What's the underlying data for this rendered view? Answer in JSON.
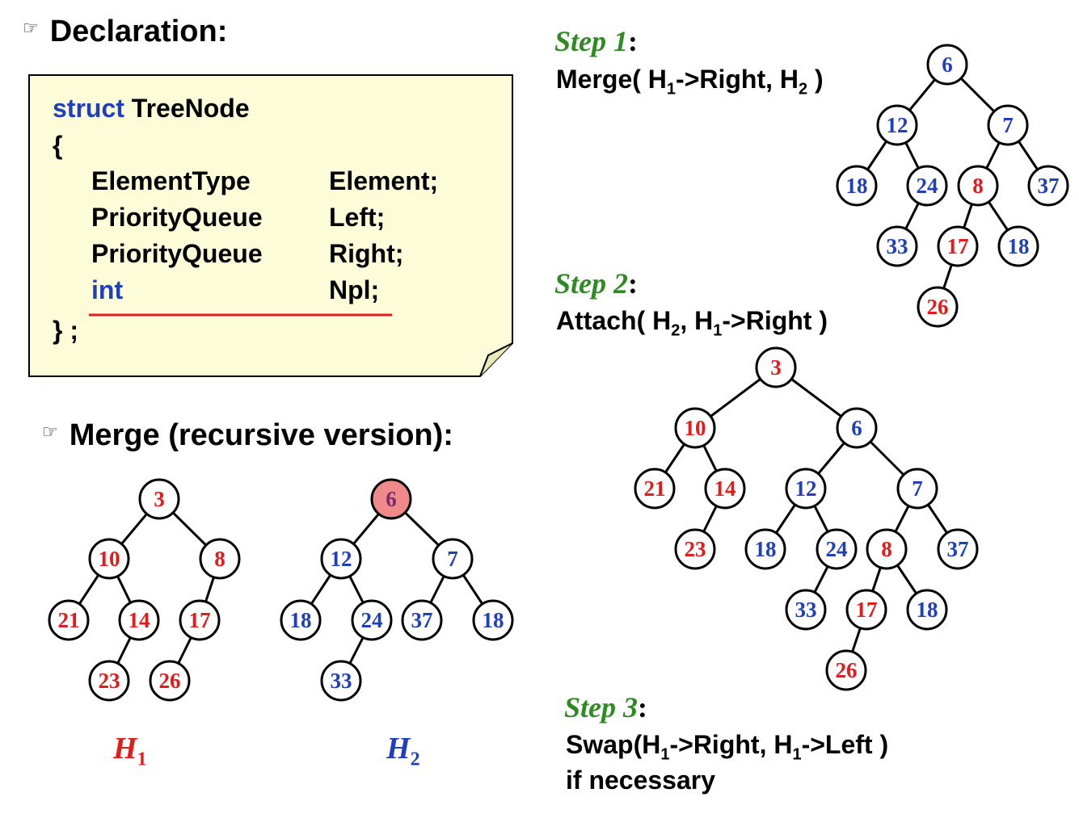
{
  "declaration_heading": "Declaration:",
  "code": {
    "line1_kw": "struct",
    "line1_name": "TreeNode",
    "open_brace": "{",
    "fields": [
      {
        "type": "ElementType",
        "name": "Element;",
        "keyword": false
      },
      {
        "type": "PriorityQueue",
        "name": "Left;",
        "keyword": false
      },
      {
        "type": "PriorityQueue",
        "name": "Right;",
        "keyword": false
      },
      {
        "type": "int",
        "name": "Npl;",
        "keyword": true
      }
    ],
    "close": "} ;"
  },
  "merge_heading": "Merge (recursive version):",
  "h1_label": {
    "letter": "H",
    "sub": "1"
  },
  "h2_label": {
    "letter": "H",
    "sub": "2"
  },
  "step1": {
    "title": "Step 1",
    "colon": ":",
    "pre": "Merge( H",
    "s1": "1",
    "mid": "->Right, H",
    "s2": "2",
    "post": " )"
  },
  "step2": {
    "title": "Step 2",
    "colon": ":",
    "pre": "Attach( H",
    "s1": "2",
    "mid": ", H",
    "s2": "1",
    "post": "->Right )"
  },
  "step3": {
    "title": "Step 3",
    "colon": ":",
    "pre": "Swap(H",
    "s1": "1",
    "mid": "->Right, H",
    "s2": "1",
    "post": "->Left )",
    "line2": "if necessary"
  },
  "colors": {
    "red": "#e31b1b",
    "blue": "#1f3fbf",
    "green": "#2e8b21",
    "note_fill": "#fcfcd8",
    "highlight": "#f08a8a"
  },
  "trees": [
    {
      "name": "h1-tree",
      "nodes": [
        {
          "id": "a",
          "label": "3",
          "color": "red"
        },
        {
          "id": "b",
          "label": "10",
          "color": "red"
        },
        {
          "id": "c",
          "label": "8",
          "color": "red"
        },
        {
          "id": "d",
          "label": "21",
          "color": "red"
        },
        {
          "id": "e",
          "label": "14",
          "color": "red"
        },
        {
          "id": "f",
          "label": "17",
          "color": "red"
        },
        {
          "id": "g",
          "label": "23",
          "color": "red"
        },
        {
          "id": "h",
          "label": "26",
          "color": "red"
        }
      ],
      "edges": [
        [
          "a",
          "b"
        ],
        [
          "a",
          "c"
        ],
        [
          "b",
          "d"
        ],
        [
          "b",
          "e"
        ],
        [
          "c",
          "f"
        ],
        [
          "e",
          "g"
        ],
        [
          "f",
          "h"
        ]
      ]
    },
    {
      "name": "h2-tree",
      "nodes": [
        {
          "id": "a",
          "label": "6",
          "color": "blue",
          "highlight": true
        },
        {
          "id": "b",
          "label": "12",
          "color": "blue"
        },
        {
          "id": "c",
          "label": "7",
          "color": "blue"
        },
        {
          "id": "d",
          "label": "18",
          "color": "blue"
        },
        {
          "id": "e",
          "label": "24",
          "color": "blue"
        },
        {
          "id": "f",
          "label": "37",
          "color": "blue"
        },
        {
          "id": "g",
          "label": "18",
          "color": "blue"
        },
        {
          "id": "h",
          "label": "33",
          "color": "blue"
        }
      ],
      "edges": [
        [
          "a",
          "b"
        ],
        [
          "a",
          "c"
        ],
        [
          "b",
          "d"
        ],
        [
          "b",
          "e"
        ],
        [
          "c",
          "f"
        ],
        [
          "c",
          "g"
        ],
        [
          "e",
          "h"
        ]
      ]
    },
    {
      "name": "step1-tree",
      "nodes": [
        {
          "id": "a",
          "label": "6",
          "color": "blue"
        },
        {
          "id": "b",
          "label": "12",
          "color": "blue"
        },
        {
          "id": "c",
          "label": "7",
          "color": "blue"
        },
        {
          "id": "d",
          "label": "18",
          "color": "blue"
        },
        {
          "id": "e",
          "label": "24",
          "color": "blue"
        },
        {
          "id": "f",
          "label": "8",
          "color": "red"
        },
        {
          "id": "g",
          "label": "37",
          "color": "blue"
        },
        {
          "id": "h",
          "label": "33",
          "color": "blue"
        },
        {
          "id": "i",
          "label": "17",
          "color": "red"
        },
        {
          "id": "j",
          "label": "18",
          "color": "blue"
        },
        {
          "id": "k",
          "label": "26",
          "color": "red"
        }
      ],
      "edges": [
        [
          "a",
          "b"
        ],
        [
          "a",
          "c"
        ],
        [
          "b",
          "d"
        ],
        [
          "b",
          "e"
        ],
        [
          "c",
          "f"
        ],
        [
          "c",
          "g"
        ],
        [
          "e",
          "h"
        ],
        [
          "f",
          "i"
        ],
        [
          "f",
          "j"
        ],
        [
          "i",
          "k"
        ]
      ]
    },
    {
      "name": "step2-tree",
      "nodes": [
        {
          "id": "a",
          "label": "3",
          "color": "red"
        },
        {
          "id": "b",
          "label": "10",
          "color": "red"
        },
        {
          "id": "c",
          "label": "6",
          "color": "blue"
        },
        {
          "id": "d",
          "label": "21",
          "color": "red"
        },
        {
          "id": "e",
          "label": "14",
          "color": "red"
        },
        {
          "id": "f",
          "label": "12",
          "color": "blue"
        },
        {
          "id": "g",
          "label": "7",
          "color": "blue"
        },
        {
          "id": "h",
          "label": "23",
          "color": "red"
        },
        {
          "id": "i",
          "label": "18",
          "color": "blue"
        },
        {
          "id": "j",
          "label": "24",
          "color": "blue"
        },
        {
          "id": "k",
          "label": "8",
          "color": "red"
        },
        {
          "id": "l",
          "label": "37",
          "color": "blue"
        },
        {
          "id": "m",
          "label": "33",
          "color": "blue"
        },
        {
          "id": "n",
          "label": "17",
          "color": "red"
        },
        {
          "id": "o",
          "label": "18",
          "color": "blue"
        },
        {
          "id": "p",
          "label": "26",
          "color": "red"
        }
      ],
      "edges": [
        [
          "a",
          "b"
        ],
        [
          "a",
          "c"
        ],
        [
          "b",
          "d"
        ],
        [
          "b",
          "e"
        ],
        [
          "c",
          "f"
        ],
        [
          "c",
          "g"
        ],
        [
          "e",
          "h"
        ],
        [
          "f",
          "i"
        ],
        [
          "f",
          "j"
        ],
        [
          "g",
          "k"
        ],
        [
          "g",
          "l"
        ],
        [
          "j",
          "m"
        ],
        [
          "k",
          "n"
        ],
        [
          "k",
          "o"
        ],
        [
          "n",
          "p"
        ]
      ]
    }
  ]
}
